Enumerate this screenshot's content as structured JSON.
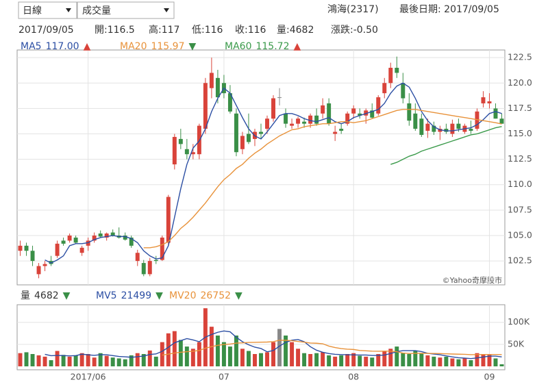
{
  "header": {
    "period": "日線",
    "indicator": "成交量",
    "stock": "鴻海(2317)",
    "last_date": "最後日期: 2017/09/05",
    "info": [
      "2017/09/05",
      "開:116.5",
      "高:117",
      "低:116",
      "收:116",
      "量:4682",
      "漲跌:-0.50"
    ],
    "watermark": "©Yahoo奇摩股市"
  },
  "chart_data": [
    {
      "type": "candlestick",
      "up_color": "#d9433a",
      "down_color": "#3a8f47",
      "flat_color": "#888888",
      "open": [
        103.5,
        104,
        103.5,
        101.2,
        102,
        102.5,
        103,
        104.5,
        104.5,
        104.8,
        103.3,
        104,
        104.5,
        105.2,
        104.8,
        105.3,
        105,
        105,
        104.8,
        102.5,
        102.3,
        101.2,
        102.6,
        102.6,
        104.3,
        112,
        114.5,
        113.5,
        113,
        113,
        115.5,
        119.5,
        120.5,
        120,
        119,
        117,
        113.5,
        115,
        114.5,
        115.2,
        115.5,
        116.5,
        118.6,
        117,
        115.8,
        116,
        116.2,
        116,
        116.8,
        117,
        118,
        115,
        115.5,
        116,
        117,
        117,
        116.8,
        117.3,
        117,
        119,
        120,
        121.5,
        120,
        118,
        117,
        116.5,
        115.3,
        115.8,
        115.2,
        115.5,
        115,
        116,
        115.2,
        115.5,
        115.5,
        118,
        118,
        117.5,
        116.5
      ],
      "high": [
        104.5,
        104.3,
        104,
        102.3,
        102.5,
        103,
        104.5,
        104.8,
        105.2,
        105,
        104,
        104.8,
        105.3,
        105.5,
        105.3,
        105.6,
        105.8,
        105.3,
        105,
        103.6,
        102.6,
        102.8,
        103,
        105,
        109,
        115,
        115.5,
        114.5,
        114,
        116,
        120.5,
        122.5,
        121.3,
        120.8,
        119.8,
        117.5,
        115.2,
        117,
        115.5,
        116,
        116.8,
        118.8,
        119.5,
        117.5,
        116.5,
        116.7,
        116.6,
        117,
        117.5,
        118.5,
        118.5,
        115.8,
        116,
        117.2,
        117.8,
        117.5,
        117.5,
        118,
        118.8,
        120.5,
        122,
        122.6,
        121,
        119,
        118,
        117,
        116.5,
        116.2,
        115.8,
        116,
        116.4,
        116.5,
        116,
        116.3,
        117.5,
        119.2,
        119,
        118,
        117
      ],
      "low": [
        103,
        103,
        102,
        100.8,
        101.5,
        102,
        102.8,
        104,
        104.3,
        104.2,
        103,
        103.5,
        104.3,
        104.8,
        104.5,
        104.9,
        104.7,
        104.5,
        103.8,
        102,
        101,
        101,
        102.2,
        102.5,
        104,
        111.5,
        113.5,
        112.5,
        112.5,
        112.5,
        115,
        118.5,
        118,
        118.5,
        117,
        112.8,
        113,
        114,
        113.8,
        114.5,
        115,
        116.2,
        117.8,
        115.6,
        115.5,
        115.6,
        115.6,
        115.6,
        115.8,
        116.5,
        115.8,
        114.3,
        115,
        115.8,
        116.5,
        116.5,
        116,
        116.5,
        116.8,
        118.5,
        119.5,
        120.5,
        118,
        115.8,
        115.3,
        114.7,
        114.6,
        114.9,
        114.4,
        115,
        114.7,
        115.2,
        115,
        115,
        115.3,
        117.6,
        117.5,
        116.5,
        116
      ],
      "close": [
        104,
        103.5,
        102.5,
        102,
        102.2,
        102.2,
        104.2,
        104.2,
        105,
        104.3,
        103.8,
        104.5,
        105,
        104.9,
        105.2,
        105,
        104.8,
        104.6,
        104,
        103.3,
        101.2,
        102.5,
        102.5,
        104.8,
        108.8,
        114.7,
        114,
        113,
        113.2,
        115.8,
        120,
        121,
        118.6,
        119,
        117.2,
        113.2,
        114.8,
        114.2,
        115.2,
        115,
        116.5,
        118.5,
        118.6,
        116,
        116,
        116.5,
        116,
        116.8,
        116,
        117.8,
        116,
        115.2,
        115.3,
        117,
        117.5,
        116.8,
        117.3,
        116.6,
        118.6,
        120,
        121.5,
        121,
        118.5,
        116.3,
        115.5,
        114.9,
        116,
        115.2,
        115.5,
        115.2,
        116,
        115.5,
        115.8,
        115.3,
        117.2,
        118.6,
        118.2,
        116.5,
        116
      ],
      "series": [
        {
          "name": "MA5",
          "color": "#2b4ea3",
          "value_label": "117.00",
          "trend": {
            "label": "▲",
            "color": "#d9433a"
          },
          "values": [
            null,
            null,
            null,
            null,
            102.6,
            102.3,
            102.6,
            103,
            104,
            104.2,
            104.2,
            104.3,
            104.6,
            104.8,
            104.9,
            105,
            104.9,
            104.9,
            104.7,
            104.3,
            103.5,
            103,
            102.7,
            102.8,
            104,
            106.8,
            109.6,
            112,
            113.6,
            114.3,
            115.5,
            117.2,
            118.5,
            119.5,
            119,
            117.8,
            116.6,
            115.5,
            114.8,
            114.5,
            115.2,
            116,
            116.8,
            117,
            117,
            116.8,
            116.5,
            116.3,
            116.2,
            116.4,
            116.6,
            116.2,
            116,
            116.2,
            116.6,
            116.8,
            117,
            117.2,
            117.4,
            118,
            119,
            119.7,
            120,
            119.6,
            118.5,
            117.2,
            116.3,
            115.7,
            115.4,
            115.3,
            115.3,
            115.4,
            115.5,
            115.6,
            115.9,
            116.4,
            117,
            117.2,
            117
          ]
        },
        {
          "name": "MA20",
          "color": "#e8923a",
          "value_label": "115.97",
          "trend": {
            "label": "▼",
            "color": "#3a8f47"
          },
          "values": [
            null,
            null,
            null,
            null,
            null,
            null,
            null,
            null,
            null,
            null,
            null,
            null,
            null,
            null,
            null,
            null,
            null,
            null,
            null,
            null,
            103.8,
            103.8,
            103.9,
            104.1,
            104.4,
            105,
            105.7,
            106.2,
            106.8,
            107.5,
            108.2,
            109,
            109.8,
            110.5,
            111,
            111.6,
            112,
            112.6,
            113.1,
            113.5,
            114,
            114.4,
            114.8,
            115.1,
            115.4,
            115.5,
            115.7,
            115.8,
            115.9,
            116,
            116,
            116.1,
            116.2,
            116.2,
            116.1,
            116.2,
            116.3,
            116.5,
            116.7,
            116.9,
            117.1,
            117.3,
            117.4,
            117.4,
            117.4,
            117.3,
            117.2,
            117.1,
            117,
            116.9,
            116.8,
            116.7,
            116.6,
            116.5,
            116.4,
            116.3,
            116.2,
            116.1,
            115.97
          ]
        },
        {
          "name": "MA60",
          "color": "#3a9a4a",
          "value_label": "115.72",
          "trend": {
            "label": "▲",
            "color": "#d9433a"
          },
          "values": [
            null,
            null,
            null,
            null,
            null,
            null,
            null,
            null,
            null,
            null,
            null,
            null,
            null,
            null,
            null,
            null,
            null,
            null,
            null,
            null,
            null,
            null,
            null,
            null,
            null,
            null,
            null,
            null,
            null,
            null,
            null,
            null,
            null,
            null,
            null,
            null,
            null,
            null,
            null,
            null,
            null,
            null,
            null,
            null,
            null,
            null,
            null,
            null,
            null,
            null,
            null,
            null,
            null,
            null,
            null,
            null,
            null,
            null,
            null,
            null,
            112,
            112.2,
            112.5,
            112.8,
            113,
            113.3,
            113.5,
            113.7,
            113.9,
            114.1,
            114.3,
            114.5,
            114.7,
            114.9,
            115,
            115.2,
            115.4,
            115.6,
            115.72
          ]
        }
      ],
      "ylim": [
        100.15,
        123.25
      ],
      "yticks": [
        102.5,
        {
          "value": 105,
          "label": "105.0"
        },
        107.5,
        {
          "value": 110,
          "label": "110.0"
        },
        112.5,
        {
          "value": 115,
          "label": "115.0"
        },
        117.5,
        {
          "value": 120,
          "label": "120.0"
        },
        122.5
      ],
      "grid": true
    },
    {
      "type": "bar",
      "name": "量",
      "trend": {
        "label": "▼",
        "color": "#3a8f47"
      },
      "categories": [
        null,
        null,
        null,
        null,
        null,
        null,
        null,
        null,
        null,
        null,
        null,
        "2017/06",
        null,
        null,
        null,
        null,
        null,
        null,
        null,
        null,
        null,
        null,
        null,
        null,
        null,
        null,
        null,
        null,
        null,
        null,
        null,
        null,
        null,
        "07",
        null,
        null,
        null,
        null,
        null,
        null,
        null,
        null,
        null,
        null,
        null,
        null,
        null,
        null,
        null,
        null,
        null,
        null,
        null,
        null,
        "08",
        null,
        null,
        null,
        null,
        null,
        null,
        null,
        null,
        null,
        null,
        null,
        null,
        null,
        null,
        null,
        null,
        null,
        null,
        null,
        null,
        null,
        "09",
        null,
        null
      ],
      "values": [
        30000,
        32000,
        28000,
        25000,
        22000,
        14000,
        35000,
        26000,
        22000,
        25000,
        30000,
        28000,
        20000,
        30000,
        24000,
        20000,
        18000,
        16000,
        25000,
        30000,
        28000,
        36000,
        22000,
        55000,
        75000,
        80000,
        60000,
        45000,
        40000,
        55000,
        132000,
        90000,
        70000,
        55000,
        45000,
        70000,
        40000,
        35000,
        28000,
        30000,
        32000,
        55000,
        85000,
        70000,
        55000,
        40000,
        30000,
        28000,
        30000,
        32000,
        25000,
        22000,
        25000,
        28000,
        30000,
        24000,
        22000,
        20000,
        28000,
        35000,
        40000,
        45000,
        30000,
        28000,
        35000,
        30000,
        25000,
        22000,
        20000,
        22000,
        18000,
        16000,
        18000,
        14000,
        30000,
        28000,
        26000,
        18000,
        4682
      ],
      "series": [
        {
          "name": "MV5",
          "color": "#2b4ea3",
          "trend": {
            "label": "▼",
            "color": "#3a8f47"
          },
          "values": [
            null,
            null,
            null,
            null,
            27400,
            24200,
            24800,
            24400,
            23800,
            24400,
            27600,
            26200,
            25000,
            26600,
            26400,
            24400,
            22400,
            21600,
            20600,
            21800,
            23400,
            27000,
            28200,
            34200,
            43200,
            53600,
            58400,
            63000,
            60000,
            56000,
            66400,
            72400,
            77400,
            80400,
            78400,
            66000,
            56000,
            49000,
            43600,
            40600,
            33000,
            36000,
            46000,
            54400,
            59400,
            61000,
            56000,
            44600,
            36600,
            32000,
            29000,
            27400,
            26800,
            26400,
            26000,
            25800,
            25800,
            24800,
            24800,
            25800,
            29000,
            33600,
            35600,
            35600,
            35600,
            33600,
            29600,
            28000,
            26400,
            23800,
            21400,
            19600,
            18800,
            17600,
            19200,
            21200,
            23200,
            23200,
            21499
          ]
        },
        {
          "name": "MV20",
          "color": "#e8923a",
          "trend": {
            "label": "▼",
            "color": "#3a8f47"
          },
          "values": [
            null,
            null,
            null,
            null,
            null,
            null,
            null,
            null,
            null,
            null,
            null,
            null,
            null,
            null,
            null,
            null,
            null,
            null,
            null,
            null,
            null,
            null,
            null,
            25500,
            27800,
            30200,
            32000,
            33300,
            34300,
            36000,
            41400,
            44900,
            47800,
            49600,
            50700,
            52800,
            53400,
            54300,
            54500,
            55000,
            55200,
            56100,
            59300,
            59100,
            58200,
            56400,
            54900,
            53000,
            52500,
            51300,
            46000,
            42600,
            40300,
            39000,
            38300,
            36000,
            35300,
            34500,
            34300,
            34500,
            34500,
            33300,
            30300,
            29200,
            29400,
            29700,
            29500,
            29300,
            29000,
            28500,
            28000,
            27600,
            27300,
            26600,
            26700,
            26900,
            27000,
            26900,
            26752
          ]
        }
      ],
      "ylim": [
        0,
        140000
      ],
      "yticks": [
        {
          "value": 50000,
          "label": "50K"
        },
        {
          "value": 100000,
          "label": "100K"
        }
      ],
      "grid": true
    }
  ]
}
